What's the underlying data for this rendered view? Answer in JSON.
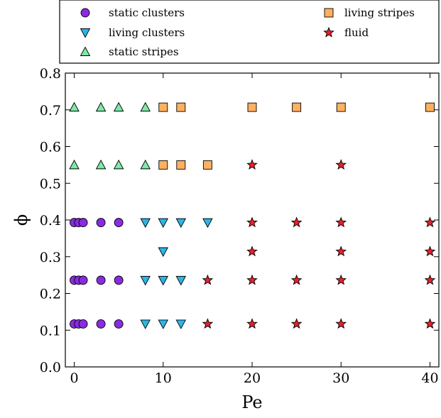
{
  "chart_data": {
    "type": "scatter",
    "xlabel": "Pe",
    "ylabel": "ϕ",
    "xlim": [
      -1,
      41
    ],
    "ylim": [
      0.0,
      0.8
    ],
    "xticks": [
      0,
      10,
      20,
      30,
      40
    ],
    "yticks": [
      0.0,
      0.1,
      0.2,
      0.3,
      0.4,
      0.5,
      0.6,
      0.7,
      0.8
    ],
    "xtick_labels": [
      "0",
      "10",
      "20",
      "30",
      "40"
    ],
    "ytick_labels": [
      "0.0",
      "0.1",
      "0.2",
      "0.3",
      "0.4",
      "0.5",
      "0.6",
      "0.7",
      "0.8"
    ],
    "grid": false,
    "legend_position": "top (above plot)",
    "series": [
      {
        "name": "static clusters",
        "marker": "circle",
        "color": "#8a2be2",
        "points": [
          [
            0,
            0.117
          ],
          [
            0.5,
            0.117
          ],
          [
            1,
            0.117
          ],
          [
            3,
            0.117
          ],
          [
            5,
            0.117
          ],
          [
            0,
            0.236
          ],
          [
            0.5,
            0.236
          ],
          [
            1,
            0.236
          ],
          [
            3,
            0.236
          ],
          [
            5,
            0.236
          ],
          [
            0,
            0.393
          ],
          [
            0.5,
            0.393
          ],
          [
            1,
            0.393
          ],
          [
            3,
            0.393
          ],
          [
            5,
            0.393
          ]
        ]
      },
      {
        "name": "living clusters",
        "marker": "triangle-down",
        "color": "#29b6e8",
        "points": [
          [
            8,
            0.117
          ],
          [
            10,
            0.117
          ],
          [
            12,
            0.117
          ],
          [
            8,
            0.236
          ],
          [
            10,
            0.236
          ],
          [
            12,
            0.236
          ],
          [
            10,
            0.314
          ],
          [
            8,
            0.393
          ],
          [
            10,
            0.393
          ],
          [
            12,
            0.393
          ],
          [
            15,
            0.393
          ]
        ]
      },
      {
        "name": "static stripes",
        "marker": "triangle-up",
        "color": "#7ee8a8",
        "points": [
          [
            0,
            0.55
          ],
          [
            3,
            0.55
          ],
          [
            5,
            0.55
          ],
          [
            8,
            0.55
          ],
          [
            0,
            0.707
          ],
          [
            3,
            0.707
          ],
          [
            5,
            0.707
          ],
          [
            8,
            0.707
          ]
        ]
      },
      {
        "name": "living stripes",
        "marker": "square",
        "color": "#ffb060",
        "points": [
          [
            10,
            0.55
          ],
          [
            12,
            0.55
          ],
          [
            15,
            0.55
          ],
          [
            10,
            0.707
          ],
          [
            12,
            0.707
          ],
          [
            20,
            0.707
          ],
          [
            25,
            0.707
          ],
          [
            30,
            0.707
          ],
          [
            40,
            0.707
          ]
        ]
      },
      {
        "name": "fluid",
        "marker": "star",
        "color": "#e8202a",
        "points": [
          [
            15,
            0.117
          ],
          [
            20,
            0.117
          ],
          [
            25,
            0.117
          ],
          [
            30,
            0.117
          ],
          [
            40,
            0.117
          ],
          [
            15,
            0.236
          ],
          [
            20,
            0.236
          ],
          [
            25,
            0.236
          ],
          [
            30,
            0.236
          ],
          [
            40,
            0.236
          ],
          [
            20,
            0.314
          ],
          [
            30,
            0.314
          ],
          [
            40,
            0.314
          ],
          [
            20,
            0.393
          ],
          [
            25,
            0.393
          ],
          [
            30,
            0.393
          ],
          [
            40,
            0.393
          ],
          [
            20,
            0.55
          ],
          [
            30,
            0.55
          ]
        ]
      }
    ]
  }
}
